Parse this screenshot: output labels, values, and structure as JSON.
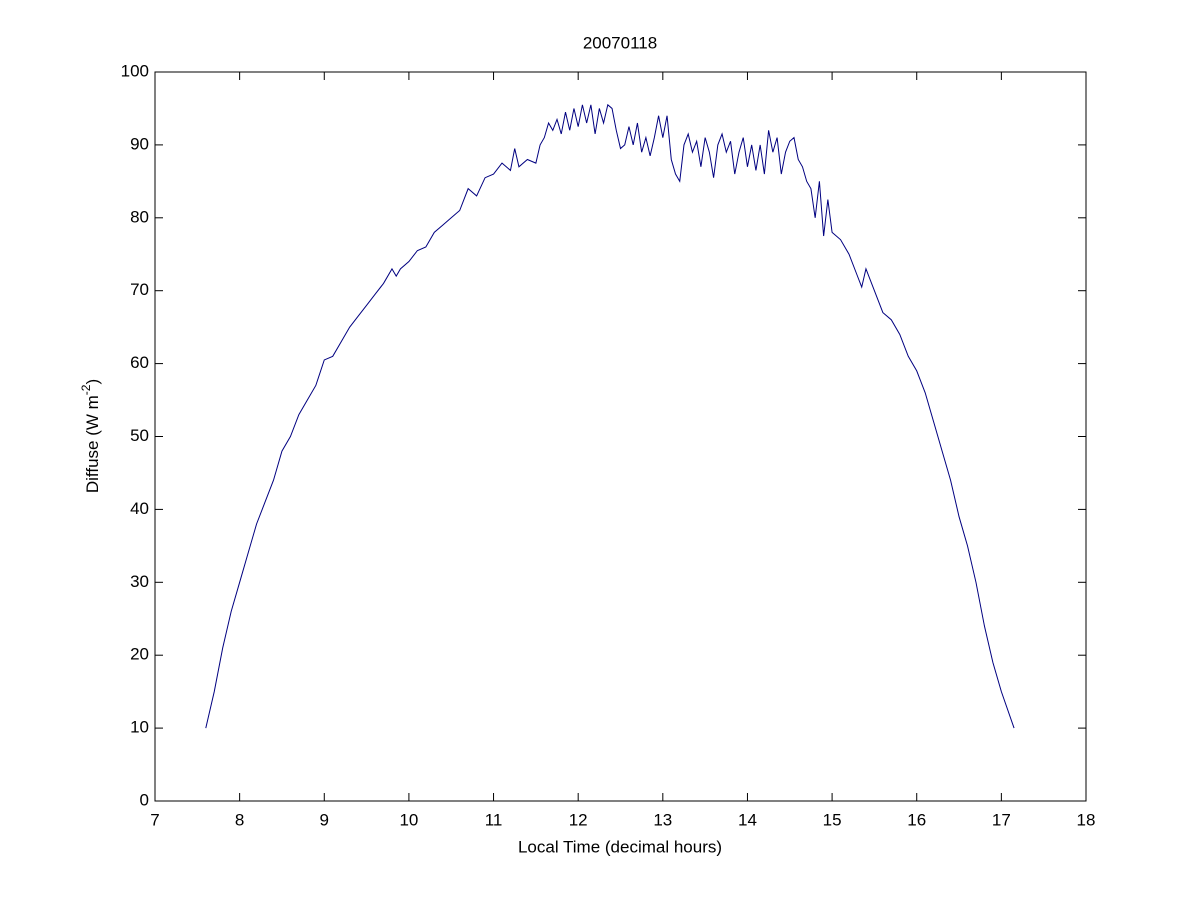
{
  "chart_data": {
    "type": "line",
    "title": "20070118",
    "xlabel": "Local Time (decimal hours)",
    "ylabel": [
      "Diffuse (W m",
      "-2",
      ")"
    ],
    "color": "#000080",
    "xlim": [
      7,
      18
    ],
    "xticks": [
      7,
      8,
      9,
      10,
      11,
      12,
      13,
      14,
      15,
      16,
      17,
      18
    ],
    "ylim": [
      0,
      100
    ],
    "yticks": [
      0,
      10,
      20,
      30,
      40,
      50,
      60,
      70,
      80,
      90,
      100
    ],
    "grid": false,
    "x": [
      7.6,
      7.7,
      7.8,
      7.9,
      8.0,
      8.1,
      8.2,
      8.3,
      8.4,
      8.5,
      8.6,
      8.7,
      8.8,
      8.9,
      9.0,
      9.1,
      9.2,
      9.3,
      9.4,
      9.5,
      9.6,
      9.7,
      9.8,
      9.85,
      9.9,
      10.0,
      10.1,
      10.2,
      10.3,
      10.4,
      10.5,
      10.6,
      10.7,
      10.8,
      10.9,
      11.0,
      11.1,
      11.2,
      11.25,
      11.3,
      11.4,
      11.5,
      11.55,
      11.6,
      11.65,
      11.7,
      11.75,
      11.8,
      11.85,
      11.9,
      11.95,
      12.0,
      12.05,
      12.1,
      12.15,
      12.2,
      12.25,
      12.3,
      12.35,
      12.4,
      12.45,
      12.5,
      12.55,
      12.6,
      12.65,
      12.7,
      12.75,
      12.8,
      12.85,
      12.9,
      12.95,
      13.0,
      13.05,
      13.1,
      13.15,
      13.2,
      13.25,
      13.3,
      13.35,
      13.4,
      13.45,
      13.5,
      13.55,
      13.6,
      13.65,
      13.7,
      13.75,
      13.8,
      13.85,
      13.9,
      13.95,
      14.0,
      14.05,
      14.1,
      14.15,
      14.2,
      14.25,
      14.3,
      14.35,
      14.4,
      14.45,
      14.5,
      14.55,
      14.6,
      14.65,
      14.7,
      14.75,
      14.8,
      14.85,
      14.9,
      14.95,
      15.0,
      15.1,
      15.2,
      15.3,
      15.35,
      15.4,
      15.5,
      15.6,
      15.7,
      15.8,
      15.9,
      16.0,
      16.1,
      16.2,
      16.3,
      16.4,
      16.5,
      16.6,
      16.7,
      16.8,
      16.9,
      17.0,
      17.15
    ],
    "values": [
      10,
      15,
      21,
      26,
      30,
      34,
      38,
      41,
      44,
      48,
      50,
      53,
      55,
      57,
      60.5,
      61,
      63,
      65,
      66.5,
      68,
      69.5,
      71,
      73,
      72,
      73,
      74,
      75.5,
      76,
      78,
      79,
      80,
      81,
      84,
      83,
      85.5,
      86,
      87.5,
      86.5,
      89.5,
      87,
      88,
      87.5,
      90,
      91,
      93,
      92,
      93.5,
      91.5,
      94.5,
      92,
      95,
      92.5,
      95.5,
      93,
      95.5,
      91.5,
      95,
      93,
      95.5,
      95,
      92,
      89.5,
      90,
      92.5,
      90,
      93,
      89,
      91,
      88.5,
      91,
      94,
      91,
      94,
      88,
      86,
      85,
      90,
      91.5,
      89,
      90.5,
      87,
      91,
      89,
      85.5,
      90,
      91.5,
      89,
      90.5,
      86,
      89,
      91,
      87,
      90,
      86.5,
      90,
      86,
      92,
      89,
      91,
      86,
      89,
      90.5,
      91,
      88,
      87,
      85,
      84,
      80,
      85,
      77.5,
      82.5,
      78,
      77,
      75,
      72,
      70.5,
      73,
      70,
      67,
      66,
      64,
      61,
      59,
      56,
      52,
      48,
      44,
      39,
      35,
      30,
      24,
      19,
      15,
      10
    ]
  }
}
